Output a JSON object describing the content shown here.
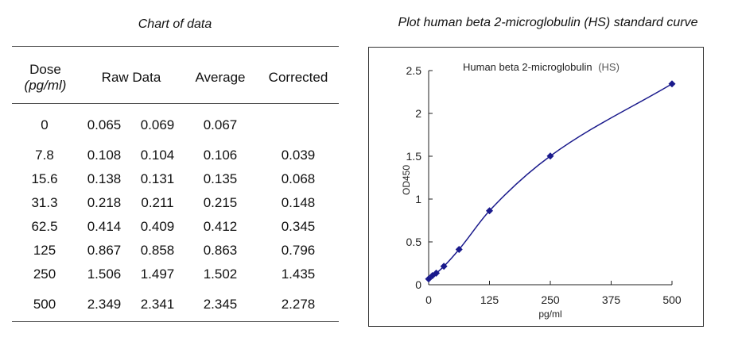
{
  "table": {
    "title": "Chart of data",
    "headers": {
      "dose": "Dose",
      "dose_unit": "(pg/ml)",
      "raw": "Raw Data",
      "average": "Average",
      "corrected": "Corrected"
    },
    "rows": [
      {
        "dose": "0",
        "raw1": "0.065",
        "raw2": "0.069",
        "average": "0.067",
        "corrected": ""
      },
      {
        "dose": "7.8",
        "raw1": "0.108",
        "raw2": "0.104",
        "average": "0.106",
        "corrected": "0.039"
      },
      {
        "dose": "15.6",
        "raw1": "0.138",
        "raw2": "0.131",
        "average": "0.135",
        "corrected": "0.068"
      },
      {
        "dose": "31.3",
        "raw1": "0.218",
        "raw2": "0.211",
        "average": "0.215",
        "corrected": "0.148"
      },
      {
        "dose": "62.5",
        "raw1": "0.414",
        "raw2": "0.409",
        "average": "0.412",
        "corrected": "0.345"
      },
      {
        "dose": "125",
        "raw1": "0.867",
        "raw2": "0.858",
        "average": "0.863",
        "corrected": "0.796"
      },
      {
        "dose": "250",
        "raw1": "1.506",
        "raw2": "1.497",
        "average": "1.502",
        "corrected": "1.435"
      },
      {
        "dose": "500",
        "raw1": "2.349",
        "raw2": "2.341",
        "average": "2.345",
        "corrected": "2.278"
      }
    ]
  },
  "plot": {
    "title": "Plot human beta 2-microglobulin (HS) standard curve"
  },
  "chart_data": {
    "type": "scatter",
    "title": "Human beta 2-microglobulin",
    "title_suffix": "(HS)",
    "xlabel": "pg/ml",
    "ylabel": "OD450",
    "x": [
      0,
      7.8,
      15.6,
      31.3,
      62.5,
      125,
      250,
      500
    ],
    "y": [
      0.067,
      0.106,
      0.135,
      0.215,
      0.412,
      0.863,
      1.502,
      2.345
    ],
    "xlim": [
      0,
      500
    ],
    "ylim": [
      0,
      2.5
    ],
    "xticks": [
      "0",
      "125",
      "250",
      "375",
      "500"
    ],
    "xtick_values": [
      0,
      125,
      250,
      375,
      500
    ],
    "yticks": [
      "0",
      "0.5",
      "1",
      "1.5",
      "2",
      "2.5"
    ],
    "ytick_values": [
      0,
      0.5,
      1,
      1.5,
      2,
      2.5
    ],
    "grid": false,
    "marker": "diamond",
    "fit": "smooth curve",
    "color": "#1a1a8c"
  }
}
